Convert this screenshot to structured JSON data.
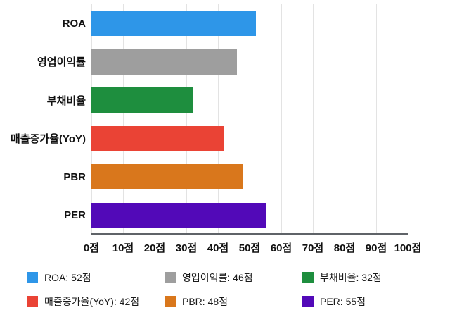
{
  "chart_data": {
    "type": "bar",
    "orientation": "horizontal",
    "title": "",
    "categories": [
      "ROA",
      "영업이익률",
      "부채비율",
      "매출증가율(YoY)",
      "PBR",
      "PER"
    ],
    "values": [
      52,
      46,
      32,
      42,
      48,
      55
    ],
    "colors": [
      "#2E96E8",
      "#9E9E9E",
      "#1E8E3E",
      "#EA4335",
      "#D9771C",
      "#5209B8"
    ],
    "value_suffix": "점",
    "xlim": [
      0,
      100
    ],
    "x_ticks": [
      0,
      10,
      20,
      30,
      40,
      50,
      60,
      70,
      80,
      90,
      100
    ],
    "x_tick_suffix": "점",
    "grid": true,
    "legend_position": "bottom",
    "legend_items": [
      {
        "label": "ROA: 52점",
        "color": "#2E96E8"
      },
      {
        "label": "영업이익률: 46점",
        "color": "#9E9E9E"
      },
      {
        "label": "부채비율: 32점",
        "color": "#1E8E3E"
      },
      {
        "label": "매출증가율(YoY): 42점",
        "color": "#EA4335"
      },
      {
        "label": "PBR: 48점",
        "color": "#D9771C"
      },
      {
        "label": "PER: 55점",
        "color": "#5209B8"
      }
    ]
  },
  "colors": {
    "gridline": "#E3E3E3",
    "axis_line": "#5F6368",
    "text": "#111111"
  }
}
